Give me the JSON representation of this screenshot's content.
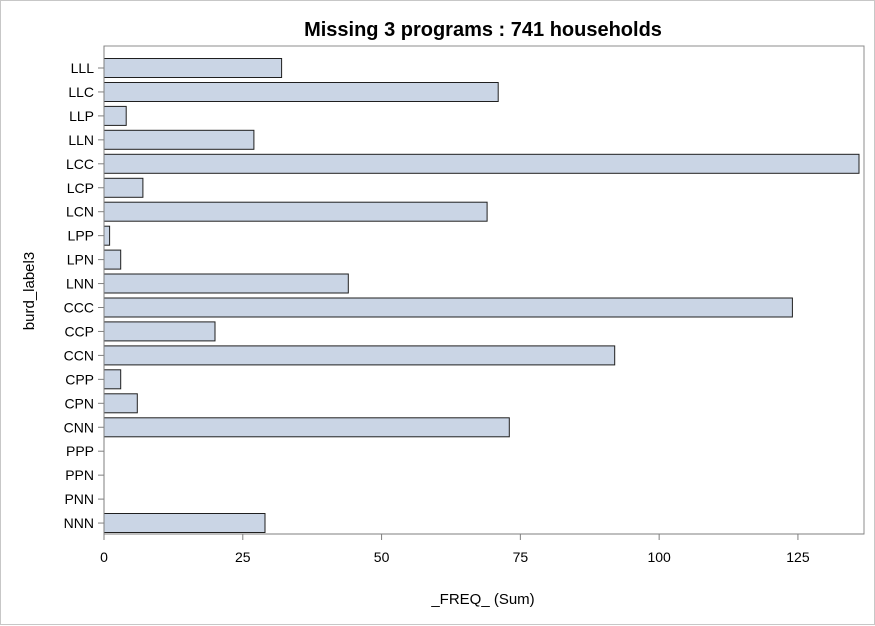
{
  "chart_data": {
    "type": "bar",
    "orientation": "horizontal",
    "title": "Missing 3 programs : 741 households",
    "xlabel": "_FREQ_ (Sum)",
    "ylabel": "burd_label3",
    "categories": [
      "LLL",
      "LLC",
      "LLP",
      "LLN",
      "LCC",
      "LCP",
      "LCN",
      "LPP",
      "LPN",
      "LNN",
      "CCC",
      "CCP",
      "CCN",
      "CPP",
      "CPN",
      "CNN",
      "PPP",
      "PPN",
      "PNN",
      "NNN"
    ],
    "values": [
      32,
      71,
      4,
      27,
      136,
      7,
      69,
      1,
      3,
      44,
      124,
      20,
      92,
      3,
      6,
      73,
      0,
      0,
      0,
      29
    ],
    "xlim": [
      0,
      136
    ],
    "xticks": [
      0,
      25,
      50,
      75,
      100,
      125
    ],
    "grid": false,
    "legend": "none",
    "colors": {
      "bar_fill": "#cad5e5",
      "bar_stroke": "#1f1f1f",
      "axis": "#7f7f7f"
    }
  }
}
